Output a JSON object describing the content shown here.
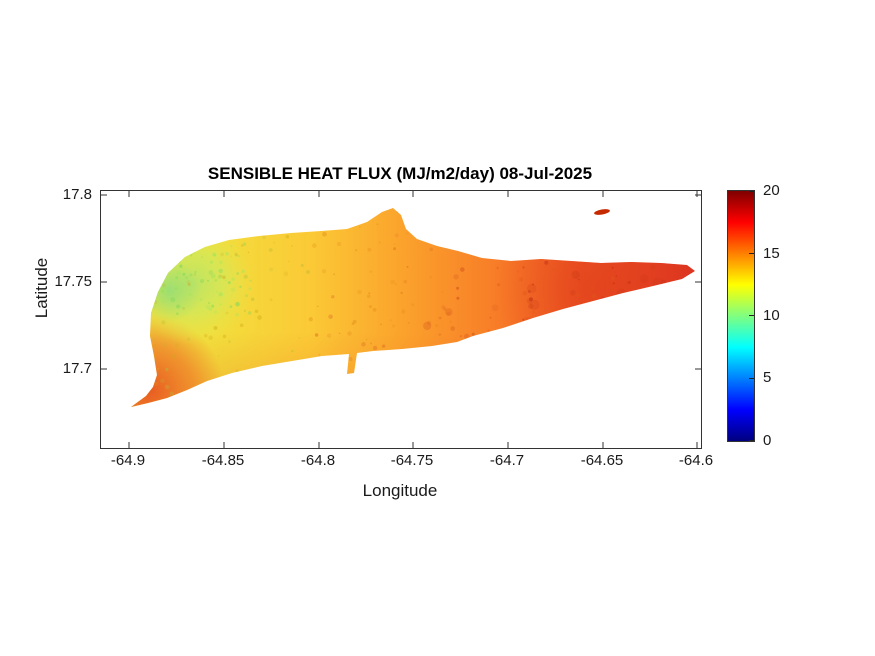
{
  "figure": {
    "title": "SENSIBLE HEAT FLUX (MJ/m2/day) 08-Jul-2025",
    "xlabel": "Longitude",
    "ylabel": "Latitude",
    "x_tick_labels": [
      "-64.9",
      "-64.85",
      "-64.8",
      "-64.75",
      "-64.7",
      "-64.65",
      "-64.6"
    ],
    "y_tick_labels": [
      "17.8",
      "17.75",
      "17.7"
    ],
    "colorbar_tick_labels": [
      "20",
      "15",
      "10",
      "5",
      "0"
    ]
  },
  "chart_data": {
    "type": "heatmap",
    "title": "SENSIBLE HEAT FLUX (MJ/m2/day) 08-Jul-2025",
    "variable": "Sensible heat flux",
    "units": "MJ/m2/day",
    "date": "08-Jul-2025",
    "xlabel": "Longitude",
    "ylabel": "Latitude",
    "xlim": [
      -64.915,
      -64.595
    ],
    "ylim": [
      17.65,
      17.8
    ],
    "x_ticks": [
      -64.9,
      -64.85,
      -64.8,
      -64.75,
      -64.7,
      -64.65,
      -64.6
    ],
    "y_ticks": [
      17.7,
      17.75,
      17.8
    ],
    "grid": false,
    "background": "white (no data over ocean)",
    "map_shape": "elongated island raster (St. Croix-like outline) spanning approx lon -64.90 to -64.565, lat 17.68 to 17.79, with thin pointed peninsula at southwest and tiny offshore islet at northeast around lon -64.62, lat 17.787",
    "colorbar": {
      "min": 0,
      "max": 20,
      "ticks": [
        0,
        5,
        10,
        15,
        20
      ],
      "colormap": "jet",
      "stops": [
        {
          "value": 0,
          "color": "#00007F"
        },
        {
          "value": 2.5,
          "color": "#0000FF"
        },
        {
          "value": 7.5,
          "color": "#00FFFF"
        },
        {
          "value": 10,
          "color": "#80FF80"
        },
        {
          "value": 12.5,
          "color": "#FFFF00"
        },
        {
          "value": 17.5,
          "color": "#FF0000"
        },
        {
          "value": 20,
          "color": "#7F0000"
        }
      ],
      "position": "right"
    },
    "regions": [
      {
        "area": "northwest interior (green-yellow patches)",
        "value_range": [
          10,
          13
        ]
      },
      {
        "area": "west-central (yellow)",
        "value_range": [
          12,
          15
        ]
      },
      {
        "area": "central (yellow-orange)",
        "value_range": [
          14,
          16
        ]
      },
      {
        "area": "south coast (orange-red)",
        "value_range": [
          15,
          17
        ]
      },
      {
        "area": "east end (red)",
        "value_range": [
          16,
          19
        ]
      },
      {
        "area": "southwest point peninsula (orange-red)",
        "value_range": [
          15,
          18
        ]
      },
      {
        "area": "offshore islet northeast (dark red)",
        "value_range": [
          18,
          20
        ]
      }
    ]
  }
}
